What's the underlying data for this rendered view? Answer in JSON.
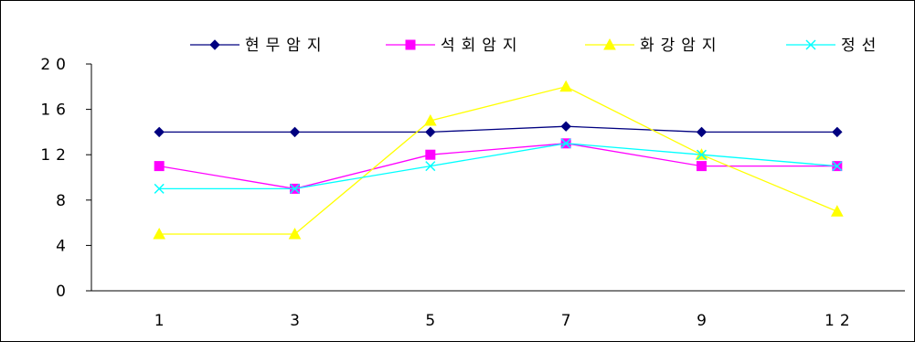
{
  "chart_data": {
    "type": "line",
    "title": "",
    "xlabel": "",
    "ylabel": "",
    "categories": [
      "1",
      "3",
      "5",
      "7",
      "9",
      "12"
    ],
    "ylim": [
      0,
      20
    ],
    "yticks": [
      "0",
      "4",
      "8",
      "12",
      "16",
      "20"
    ],
    "grid": false,
    "legend_position": "top",
    "series": [
      {
        "name": "현무암지",
        "values": [
          14,
          14,
          14,
          14.5,
          14,
          14
        ],
        "color": "#000080",
        "marker": "diamond"
      },
      {
        "name": "석회암지",
        "values": [
          11,
          9,
          12,
          13,
          11,
          11
        ],
        "color": "#ff00ff",
        "marker": "square"
      },
      {
        "name": "화강암지",
        "values": [
          5,
          5,
          15,
          18,
          12,
          7
        ],
        "color": "#ffff00",
        "marker": "triangle"
      },
      {
        "name": "정선",
        "values": [
          9,
          9,
          11,
          13,
          12,
          11
        ],
        "color": "#00ffff",
        "marker": "x"
      }
    ]
  }
}
